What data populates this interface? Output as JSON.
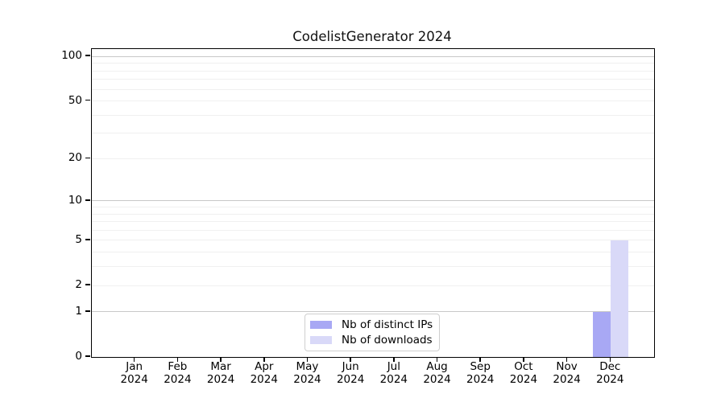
{
  "chart": {
    "title": "CodelistGenerator 2024"
  },
  "chart_data": {
    "type": "bar",
    "title": "CodelistGenerator 2024",
    "categories": [
      "Jan 2024",
      "Feb 2024",
      "Mar 2024",
      "Apr 2024",
      "May 2024",
      "Jun 2024",
      "Jul 2024",
      "Aug 2024",
      "Sep 2024",
      "Oct 2024",
      "Nov 2024",
      "Dec 2024"
    ],
    "category_month_labels": [
      "Jan",
      "Feb",
      "Mar",
      "Apr",
      "May",
      "Jun",
      "Jul",
      "Aug",
      "Sep",
      "Oct",
      "Nov",
      "Dec"
    ],
    "category_year_label": "2024",
    "series": [
      {
        "name": "Nb of distinct IPs",
        "color": "#a8a8f4",
        "values": [
          0,
          0,
          0,
          0,
          0,
          0,
          0,
          0,
          0,
          0,
          0,
          1
        ]
      },
      {
        "name": "Nb of downloads",
        "color": "#d9d9f8",
        "values": [
          0,
          0,
          0,
          0,
          0,
          0,
          0,
          0,
          0,
          0,
          0,
          5
        ]
      }
    ],
    "xlabel": "",
    "ylabel": "",
    "yscale": "log1p",
    "ylim": [
      0,
      113
    ],
    "ytick_values": [
      0,
      1,
      2,
      5,
      10,
      20,
      50,
      100
    ],
    "major_gridlines": [
      1,
      10,
      100
    ],
    "minor_gridlines": [
      2,
      3,
      4,
      5,
      6,
      7,
      8,
      9,
      20,
      30,
      40,
      50,
      60,
      70,
      80,
      90
    ],
    "grid": "horizontal",
    "legend_position": "lower center",
    "colors": {
      "major_grid": "#c8c8c8",
      "minor_grid": "#f0f0f0",
      "spine": "#000000"
    }
  }
}
